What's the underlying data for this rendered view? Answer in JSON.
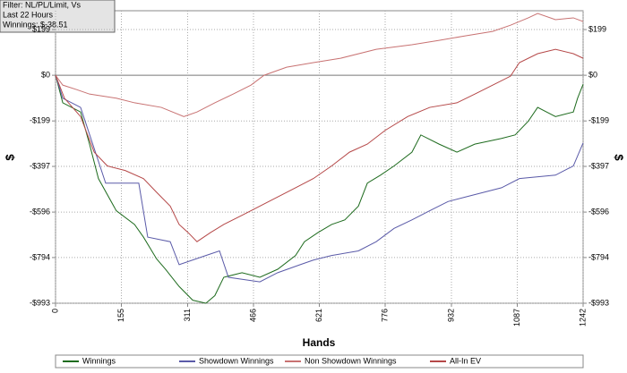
{
  "chart_data": {
    "type": "line",
    "info": [
      "Filter: NL/PL/Limit, Vs",
      "Last  22 Hours",
      "Winnings: $-38.51"
    ],
    "xlabel": "Hands",
    "ylabel": "$",
    "xlim": [
      0,
      1242
    ],
    "xticks": [
      0,
      155,
      311,
      466,
      621,
      776,
      932,
      1087,
      1242
    ],
    "ylim": [
      -993,
      281
    ],
    "yticks": [
      {
        "value": 199,
        "label": "$199"
      },
      {
        "value": 0,
        "label": "$0"
      },
      {
        "value": -199,
        "label": "-$199"
      },
      {
        "value": -397,
        "label": "-$397"
      },
      {
        "value": -596,
        "label": "-$596"
      },
      {
        "value": -794,
        "label": "-$794"
      },
      {
        "value": -993,
        "label": "-$993"
      }
    ],
    "grid": true,
    "legend": "bottom",
    "series": [
      {
        "name": "Winnings",
        "color": "#1e6b1e",
        "x": [
          0,
          17,
          59,
          80,
          101,
          143,
          186,
          207,
          238,
          259,
          291,
          323,
          354,
          375,
          396,
          439,
          481,
          523,
          565,
          586,
          618,
          650,
          681,
          713,
          734,
          765,
          797,
          839,
          860,
          903,
          945,
          987,
          1050,
          1082,
          1113,
          1135,
          1177,
          1219,
          1229,
          1242
        ],
        "values": [
          0,
          -120,
          -160,
          -300,
          -450,
          -590,
          -650,
          -705,
          -800,
          -845,
          -920,
          -980,
          -993,
          -960,
          -880,
          -860,
          -880,
          -845,
          -785,
          -725,
          -685,
          -650,
          -630,
          -570,
          -470,
          -435,
          -395,
          -335,
          -260,
          -300,
          -335,
          -300,
          -275,
          -260,
          -200,
          -140,
          -180,
          -160,
          -100,
          -39
        ]
      },
      {
        "name": "Showdown Winnings",
        "color": "#5a5aa8",
        "x": [
          0,
          17,
          59,
          118,
          196,
          217,
          270,
          291,
          354,
          386,
          407,
          481,
          523,
          576,
          607,
          650,
          713,
          755,
          797,
          839,
          881,
          924,
          966,
          1008,
          1050,
          1092,
          1177,
          1219,
          1242
        ],
        "values": [
          0,
          -100,
          -140,
          -470,
          -470,
          -705,
          -725,
          -825,
          -785,
          -765,
          -880,
          -900,
          -860,
          -825,
          -805,
          -785,
          -765,
          -725,
          -667,
          -630,
          -590,
          -550,
          -530,
          -510,
          -490,
          -450,
          -435,
          -395,
          -295
        ]
      },
      {
        "name": "Non Showdown Winnings",
        "color": "#c87272",
        "x": [
          0,
          17,
          49,
          80,
          143,
          186,
          249,
          302,
          333,
          375,
          418,
          460,
          491,
          544,
          607,
          671,
          755,
          839,
          903,
          966,
          1029,
          1071,
          1113,
          1135,
          1177,
          1219,
          1242
        ],
        "values": [
          0,
          -43,
          -62,
          -82,
          -100,
          -120,
          -140,
          -180,
          -160,
          -120,
          -82,
          -43,
          0,
          35,
          55,
          74,
          113,
          133,
          152,
          172,
          191,
          218,
          250,
          269,
          242,
          250,
          234
        ]
      },
      {
        "name": "All-In EV",
        "color": "#b54848",
        "x": [
          0,
          21,
          59,
          91,
          122,
          164,
          207,
          238,
          270,
          291,
          312,
          333,
          365,
          396,
          439,
          481,
          523,
          565,
          607,
          650,
          692,
          734,
          776,
          829,
          881,
          945,
          987,
          1029,
          1071,
          1092,
          1135,
          1177,
          1219,
          1242
        ],
        "values": [
          0,
          -100,
          -180,
          -335,
          -395,
          -415,
          -450,
          -510,
          -570,
          -650,
          -685,
          -725,
          -685,
          -650,
          -610,
          -570,
          -530,
          -490,
          -450,
          -395,
          -335,
          -300,
          -240,
          -180,
          -140,
          -120,
          -82,
          -43,
          -4,
          55,
          94,
          113,
          94,
          74
        ]
      }
    ]
  }
}
